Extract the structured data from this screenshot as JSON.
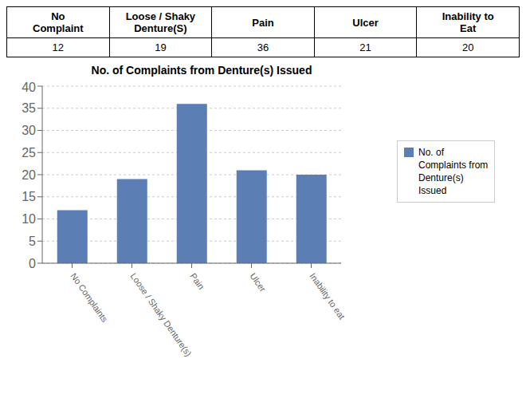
{
  "chart_data": {
    "type": "bar",
    "title": "No. of Complaints from Denture(s) Issued",
    "table": {
      "headers": [
        "No\nComplaint",
        "Loose / Shaky\nDenture(S)",
        "Pain",
        "Ulcer",
        "Inability to\nEat"
      ],
      "values": [
        12,
        19,
        36,
        21,
        20
      ]
    },
    "categories": [
      "No Complaints",
      "Loose / Shaky Denture(s)",
      "Pain",
      "Ulcer",
      "Inability to eat"
    ],
    "series": [
      {
        "name": "No. of\nComplaints from\nDenture(s)\nIssued",
        "color": "#5B7FB5",
        "values": [
          12,
          19,
          36,
          21,
          20
        ]
      }
    ],
    "ylim": [
      0,
      40
    ],
    "yticks": [
      0,
      5,
      10,
      15,
      20,
      25,
      30,
      35,
      40
    ],
    "grid": true,
    "legend": "right"
  }
}
